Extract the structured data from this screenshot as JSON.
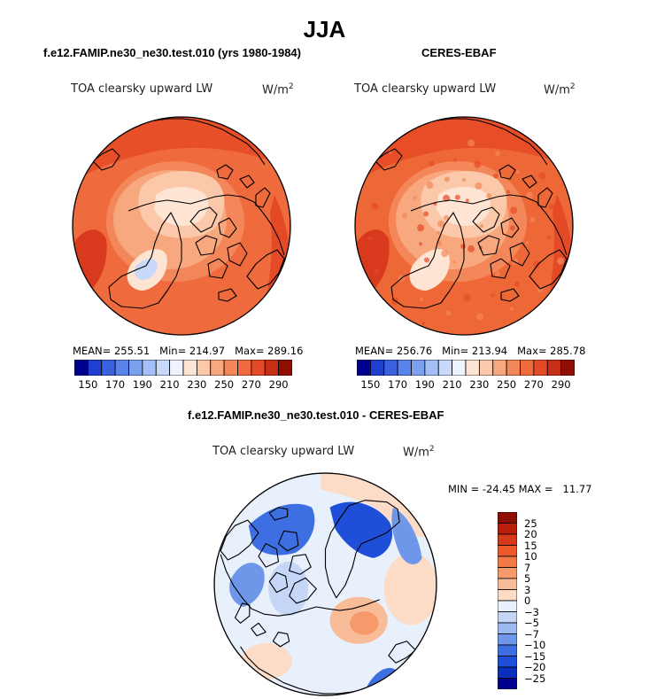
{
  "page": {
    "title": "JJA"
  },
  "chart_data": [
    {
      "type": "heatmap",
      "projection": "north-polar-stereographic",
      "header": "f.e12.FAMIP.ne30_ne30.test.010 (yrs 1980-1984)",
      "variable": "TOA clearsky upward LW",
      "units_base": "W/m",
      "units_exp": "2",
      "stats": {
        "mean_label": "MEAN=",
        "mean": "255.51",
        "min_label": "Min=",
        "min": "214.97",
        "max_label": "Max=",
        "max": "289.16"
      },
      "colorbar": {
        "orientation": "horizontal",
        "levels": [
          150,
          160,
          170,
          180,
          190,
          200,
          210,
          220,
          230,
          240,
          250,
          260,
          270,
          280,
          290
        ],
        "tick_labels": [
          "150",
          "170",
          "190",
          "210",
          "230",
          "250",
          "270",
          "290"
        ],
        "colors": [
          "#00008f",
          "#1f3fd1",
          "#3a62e0",
          "#5a84ea",
          "#7aa0ef",
          "#a3bff5",
          "#c9d9f9",
          "#eef3fd",
          "#fde4d3",
          "#fbc8a9",
          "#f8a87e",
          "#f48759",
          "#ef6a3c",
          "#e54a26",
          "#c62f16",
          "#8f0e04"
        ]
      }
    },
    {
      "type": "heatmap",
      "projection": "north-polar-stereographic",
      "header": "CERES-EBAF",
      "variable": "TOA clearsky upward LW",
      "units_base": "W/m",
      "units_exp": "2",
      "stats": {
        "mean_label": "MEAN=",
        "mean": "256.76",
        "min_label": "Min=",
        "min": "213.94",
        "max_label": "Max=",
        "max": "285.78"
      },
      "colorbar": {
        "orientation": "horizontal",
        "levels": [
          150,
          160,
          170,
          180,
          190,
          200,
          210,
          220,
          230,
          240,
          250,
          260,
          270,
          280,
          290
        ],
        "tick_labels": [
          "150",
          "170",
          "190",
          "210",
          "230",
          "250",
          "270",
          "290"
        ],
        "colors": [
          "#00008f",
          "#1f3fd1",
          "#3a62e0",
          "#5a84ea",
          "#7aa0ef",
          "#a3bff5",
          "#c9d9f9",
          "#eef3fd",
          "#fde4d3",
          "#fbc8a9",
          "#f8a87e",
          "#f48759",
          "#ef6a3c",
          "#e54a26",
          "#c62f16",
          "#8f0e04"
        ]
      }
    },
    {
      "type": "heatmap",
      "projection": "north-polar-stereographic",
      "header": "f.e12.FAMIP.ne30_ne30.test.010 - CERES-EBAF",
      "variable": "TOA clearsky upward LW",
      "units_base": "W/m",
      "units_exp": "2",
      "stats": {
        "min_label": "MIN =",
        "min": "-24.45",
        "max_label": "MAX =",
        "max": "11.77"
      },
      "colorbar": {
        "orientation": "vertical",
        "levels": [
          25,
          20,
          15,
          10,
          7,
          5,
          3,
          0,
          -3,
          -5,
          -7,
          -10,
          -15,
          -20,
          -25
        ],
        "tick_labels": [
          "25",
          "20",
          "15",
          "10",
          "7",
          "5",
          "3",
          "0",
          "−3",
          "−5",
          "−7",
          "−10",
          "−15",
          "−20",
          "−25"
        ],
        "colors": [
          "#8f0e04",
          "#b8200c",
          "#d63a1a",
          "#ec5a2c",
          "#f27a48",
          "#f69a6c",
          "#f9bc98",
          "#fcdcc6",
          "#e8f0fc",
          "#c5d6f6",
          "#9cb9f0",
          "#6f97e9",
          "#3e6fe2",
          "#1f4fd8",
          "#0b2fb8",
          "#00008f"
        ]
      }
    }
  ]
}
